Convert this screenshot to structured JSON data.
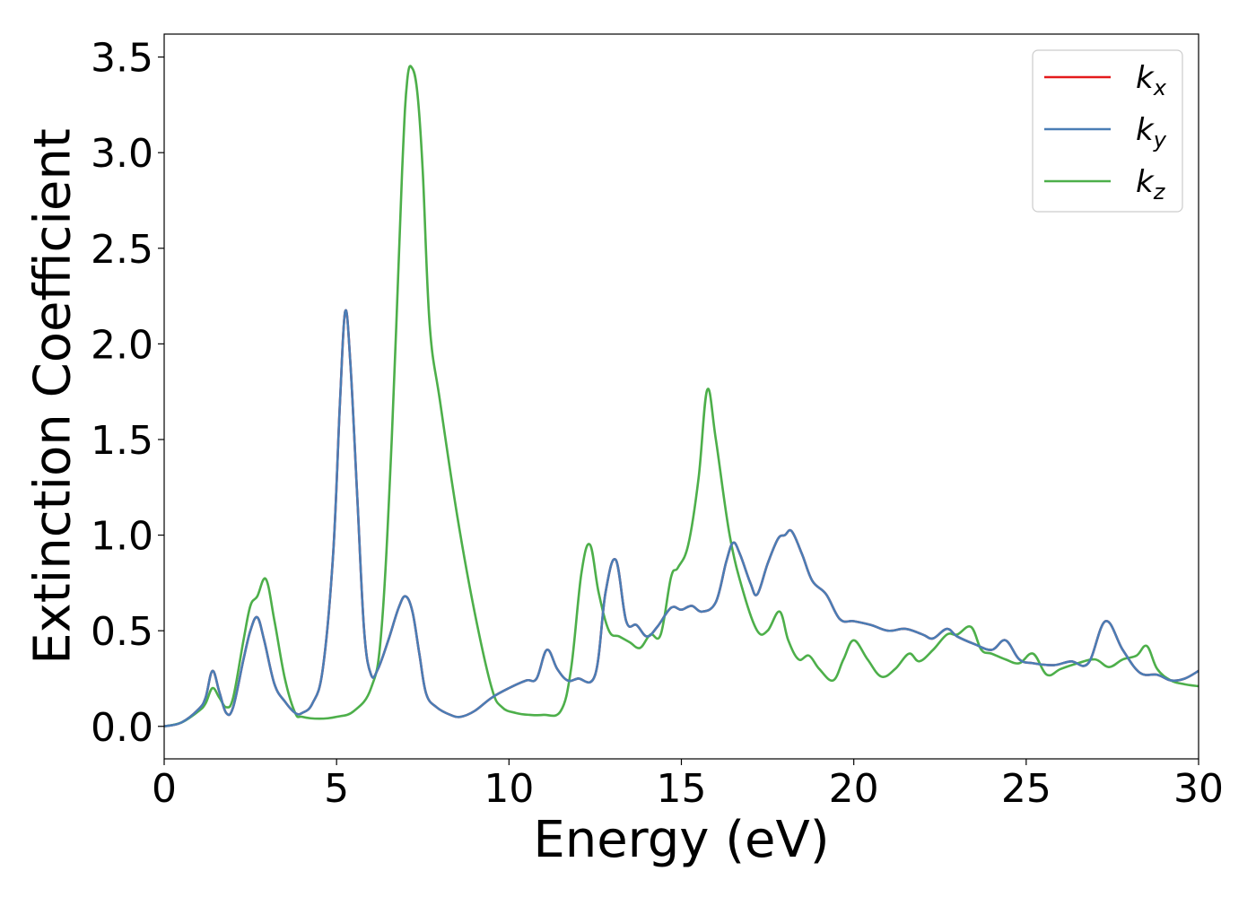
{
  "chart_data": {
    "type": "line",
    "title": "",
    "xlabel": "Energy (eV)",
    "ylabel": "Extinction Coefficient",
    "xlim": [
      0,
      30
    ],
    "ylim": [
      -0.17,
      3.62
    ],
    "xticks": [
      "0",
      "5",
      "10",
      "15",
      "20",
      "25",
      "30"
    ],
    "yticks": [
      "0.0",
      "0.5",
      "1.0",
      "1.5",
      "2.0",
      "2.5",
      "3.0",
      "3.5"
    ],
    "grid": false,
    "legend_position": "top-right",
    "colors": {
      "kx": "#e41a1c",
      "ky": "#4a7db5",
      "kz": "#4daf4a"
    },
    "series": [
      {
        "name": "kx",
        "label_main": "k",
        "label_sub": "x",
        "x": [
          0,
          0.5,
          1.0,
          1.2,
          1.4,
          1.6,
          1.8,
          2.0,
          2.3,
          2.5,
          2.7,
          2.9,
          3.2,
          3.5,
          3.8,
          4.0,
          4.3,
          4.6,
          4.9,
          5.1,
          5.25,
          5.4,
          5.6,
          5.8,
          6.0,
          6.2,
          6.5,
          6.8,
          7.0,
          7.2,
          7.4,
          7.6,
          7.9,
          8.3,
          8.6,
          9.0,
          9.5,
          10.0,
          10.5,
          10.8,
          11.1,
          11.4,
          11.7,
          12.0,
          12.5,
          12.8,
          13.1,
          13.4,
          13.7,
          14.0,
          14.3,
          14.7,
          15.0,
          15.3,
          15.6,
          16.0,
          16.3,
          16.5,
          16.7,
          17.0,
          17.2,
          17.5,
          17.8,
          18.0,
          18.2,
          18.5,
          18.8,
          19.2,
          19.6,
          20.0,
          20.5,
          21.0,
          21.5,
          22.0,
          22.3,
          22.7,
          23.0,
          23.5,
          24.0,
          24.4,
          24.8,
          25.2,
          25.8,
          26.3,
          26.8,
          27.3,
          27.8,
          28.3,
          28.8,
          29.2,
          29.6,
          30.0
        ],
        "y": [
          0.0,
          0.02,
          0.09,
          0.15,
          0.29,
          0.18,
          0.07,
          0.1,
          0.35,
          0.5,
          0.57,
          0.45,
          0.22,
          0.13,
          0.07,
          0.07,
          0.12,
          0.3,
          0.9,
          1.7,
          2.17,
          1.9,
          1.2,
          0.5,
          0.27,
          0.3,
          0.45,
          0.62,
          0.68,
          0.6,
          0.38,
          0.17,
          0.1,
          0.06,
          0.05,
          0.08,
          0.15,
          0.2,
          0.24,
          0.25,
          0.4,
          0.3,
          0.24,
          0.25,
          0.27,
          0.7,
          0.87,
          0.55,
          0.53,
          0.47,
          0.52,
          0.62,
          0.61,
          0.63,
          0.6,
          0.65,
          0.86,
          0.96,
          0.9,
          0.75,
          0.69,
          0.85,
          0.98,
          1.0,
          1.02,
          0.9,
          0.76,
          0.69,
          0.56,
          0.55,
          0.53,
          0.5,
          0.51,
          0.48,
          0.46,
          0.51,
          0.47,
          0.43,
          0.4,
          0.45,
          0.35,
          0.33,
          0.32,
          0.34,
          0.33,
          0.55,
          0.4,
          0.28,
          0.27,
          0.24,
          0.25,
          0.29
        ]
      },
      {
        "name": "ky",
        "label_main": "k",
        "label_sub": "y",
        "x": [
          0,
          0.5,
          1.0,
          1.2,
          1.4,
          1.6,
          1.8,
          2.0,
          2.3,
          2.5,
          2.7,
          2.9,
          3.2,
          3.5,
          3.8,
          4.0,
          4.3,
          4.6,
          4.9,
          5.1,
          5.25,
          5.4,
          5.6,
          5.8,
          6.0,
          6.2,
          6.5,
          6.8,
          7.0,
          7.2,
          7.4,
          7.6,
          7.9,
          8.3,
          8.6,
          9.0,
          9.5,
          10.0,
          10.5,
          10.8,
          11.1,
          11.4,
          11.7,
          12.0,
          12.5,
          12.8,
          13.1,
          13.4,
          13.7,
          14.0,
          14.3,
          14.7,
          15.0,
          15.3,
          15.6,
          16.0,
          16.3,
          16.5,
          16.7,
          17.0,
          17.2,
          17.5,
          17.8,
          18.0,
          18.2,
          18.5,
          18.8,
          19.2,
          19.6,
          20.0,
          20.5,
          21.0,
          21.5,
          22.0,
          22.3,
          22.7,
          23.0,
          23.5,
          24.0,
          24.4,
          24.8,
          25.2,
          25.8,
          26.3,
          26.8,
          27.3,
          27.8,
          28.3,
          28.8,
          29.2,
          29.6,
          30.0
        ],
        "y": [
          0.0,
          0.02,
          0.09,
          0.15,
          0.29,
          0.18,
          0.07,
          0.1,
          0.35,
          0.5,
          0.57,
          0.45,
          0.22,
          0.13,
          0.07,
          0.07,
          0.12,
          0.3,
          0.9,
          1.7,
          2.17,
          1.9,
          1.2,
          0.5,
          0.27,
          0.3,
          0.45,
          0.62,
          0.68,
          0.6,
          0.38,
          0.17,
          0.1,
          0.06,
          0.05,
          0.08,
          0.15,
          0.2,
          0.24,
          0.25,
          0.4,
          0.3,
          0.24,
          0.25,
          0.27,
          0.7,
          0.87,
          0.55,
          0.53,
          0.47,
          0.52,
          0.62,
          0.61,
          0.63,
          0.6,
          0.65,
          0.86,
          0.96,
          0.9,
          0.75,
          0.69,
          0.85,
          0.98,
          1.0,
          1.02,
          0.9,
          0.76,
          0.69,
          0.56,
          0.55,
          0.53,
          0.5,
          0.51,
          0.48,
          0.46,
          0.51,
          0.47,
          0.43,
          0.4,
          0.45,
          0.35,
          0.33,
          0.32,
          0.34,
          0.33,
          0.55,
          0.4,
          0.28,
          0.27,
          0.24,
          0.25,
          0.29
        ]
      },
      {
        "name": "kz",
        "label_main": "k",
        "label_sub": "z",
        "x": [
          0,
          0.5,
          1.0,
          1.2,
          1.4,
          1.6,
          1.8,
          2.0,
          2.3,
          2.5,
          2.7,
          2.95,
          3.2,
          3.5,
          3.8,
          4.0,
          4.5,
          5.0,
          5.5,
          6.0,
          6.3,
          6.6,
          6.9,
          7.05,
          7.2,
          7.35,
          7.5,
          7.7,
          8.0,
          8.5,
          9.0,
          9.5,
          9.8,
          10.2,
          10.6,
          11.0,
          11.5,
          11.8,
          12.1,
          12.35,
          12.6,
          12.9,
          13.2,
          13.5,
          13.8,
          14.1,
          14.4,
          14.7,
          14.9,
          15.2,
          15.5,
          15.75,
          16.0,
          16.4,
          16.8,
          17.2,
          17.5,
          17.85,
          18.1,
          18.4,
          18.7,
          19.0,
          19.4,
          19.7,
          20.0,
          20.4,
          20.8,
          21.2,
          21.6,
          21.9,
          22.3,
          22.7,
          23.0,
          23.4,
          23.7,
          24.0,
          24.4,
          24.8,
          25.2,
          25.6,
          26.0,
          26.5,
          27.0,
          27.4,
          27.8,
          28.2,
          28.5,
          28.8,
          29.2,
          29.6,
          30.0
        ],
        "y": [
          0.0,
          0.02,
          0.08,
          0.12,
          0.2,
          0.15,
          0.1,
          0.15,
          0.45,
          0.63,
          0.68,
          0.77,
          0.55,
          0.25,
          0.07,
          0.05,
          0.04,
          0.05,
          0.08,
          0.2,
          0.5,
          1.5,
          2.9,
          3.38,
          3.44,
          3.3,
          2.9,
          2.1,
          1.7,
          1.1,
          0.6,
          0.2,
          0.1,
          0.07,
          0.06,
          0.06,
          0.08,
          0.3,
          0.8,
          0.95,
          0.7,
          0.5,
          0.47,
          0.44,
          0.41,
          0.48,
          0.48,
          0.78,
          0.83,
          0.95,
          1.3,
          1.76,
          1.5,
          1.0,
          0.7,
          0.5,
          0.5,
          0.6,
          0.45,
          0.35,
          0.37,
          0.3,
          0.24,
          0.35,
          0.45,
          0.35,
          0.26,
          0.3,
          0.38,
          0.34,
          0.4,
          0.48,
          0.48,
          0.52,
          0.4,
          0.38,
          0.35,
          0.33,
          0.38,
          0.27,
          0.3,
          0.33,
          0.35,
          0.31,
          0.35,
          0.37,
          0.42,
          0.3,
          0.24,
          0.22,
          0.21
        ]
      }
    ]
  }
}
